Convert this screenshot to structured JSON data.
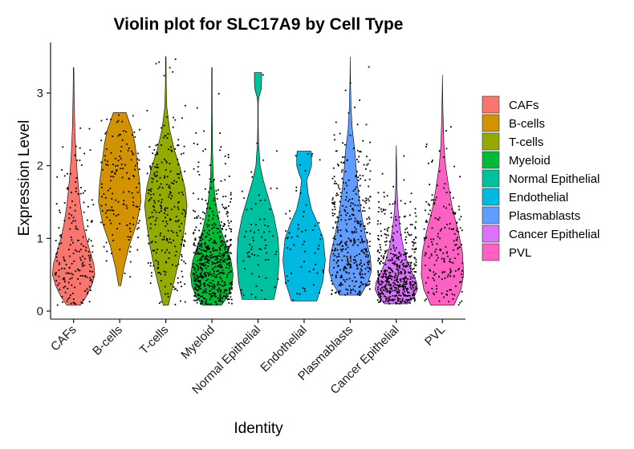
{
  "chart_data": {
    "type": "violin",
    "title": "Violin plot for SLC17A9 by Cell Type",
    "xlabel": "Identity",
    "ylabel": "Expression Level",
    "ylim": [
      -0.1,
      3.6
    ],
    "yticks": [
      0,
      1,
      2,
      3
    ],
    "grid": false,
    "legend_position": "right",
    "categories": [
      "CAFs",
      "B-cells",
      "T-cells",
      "Myeloid",
      "Normal Epithelial",
      "Endothelial",
      "Plasmablasts",
      "Cancer Epithelial",
      "PVL"
    ],
    "colors": [
      "#F8766D",
      "#D39200",
      "#93AA00",
      "#00BA38",
      "#00C19F",
      "#00B9E3",
      "#619CFF",
      "#DB72FB",
      "#FF61C3"
    ],
    "series": [
      {
        "name": "CAFs",
        "min": 0.08,
        "max": 3.35,
        "mode": 0.55,
        "n_points": 190,
        "density": [
          [
            0.08,
            0.32
          ],
          [
            0.2,
            0.6
          ],
          [
            0.35,
            0.85
          ],
          [
            0.5,
            1.0
          ],
          [
            0.65,
            0.95
          ],
          [
            0.8,
            0.8
          ],
          [
            1.0,
            0.6
          ],
          [
            1.2,
            0.45
          ],
          [
            1.5,
            0.3
          ],
          [
            1.8,
            0.2
          ],
          [
            2.1,
            0.12
          ],
          [
            2.5,
            0.06
          ],
          [
            2.9,
            0.03
          ],
          [
            3.35,
            0.01
          ]
        ]
      },
      {
        "name": "B-cells",
        "min": 0.35,
        "max": 2.73,
        "mode": 1.55,
        "n_points": 150,
        "density": [
          [
            0.35,
            0.05
          ],
          [
            0.6,
            0.2
          ],
          [
            0.9,
            0.45
          ],
          [
            1.2,
            0.8
          ],
          [
            1.5,
            1.0
          ],
          [
            1.75,
            0.95
          ],
          [
            2.0,
            0.85
          ],
          [
            2.3,
            0.72
          ],
          [
            2.5,
            0.58
          ],
          [
            2.6,
            0.45
          ],
          [
            2.73,
            0.3
          ]
        ]
      },
      {
        "name": "T-cells",
        "min": 0.08,
        "max": 3.5,
        "mode": 1.45,
        "n_points": 260,
        "density": [
          [
            0.08,
            0.12
          ],
          [
            0.3,
            0.3
          ],
          [
            0.6,
            0.55
          ],
          [
            0.9,
            0.75
          ],
          [
            1.2,
            0.9
          ],
          [
            1.45,
            1.0
          ],
          [
            1.7,
            0.9
          ],
          [
            2.0,
            0.65
          ],
          [
            2.2,
            0.42
          ],
          [
            2.5,
            0.18
          ],
          [
            2.8,
            0.05
          ],
          [
            3.1,
            0.02
          ],
          [
            3.5,
            0.01
          ]
        ]
      },
      {
        "name": "Myeloid",
        "min": 0.08,
        "max": 3.35,
        "mode": 0.45,
        "n_points": 560,
        "density": [
          [
            0.08,
            0.45
          ],
          [
            0.2,
            0.75
          ],
          [
            0.35,
            0.95
          ],
          [
            0.5,
            1.0
          ],
          [
            0.7,
            0.9
          ],
          [
            0.9,
            0.68
          ],
          [
            1.1,
            0.45
          ],
          [
            1.3,
            0.3
          ],
          [
            1.5,
            0.18
          ],
          [
            1.8,
            0.07
          ],
          [
            2.2,
            0.03
          ],
          [
            2.8,
            0.015
          ],
          [
            3.35,
            0.01
          ]
        ]
      },
      {
        "name": "Normal Epithelial",
        "min": 0.16,
        "max": 3.28,
        "mode": 0.75,
        "n_points": 70,
        "density": [
          [
            0.16,
            0.75
          ],
          [
            0.4,
            0.92
          ],
          [
            0.7,
            1.0
          ],
          [
            1.0,
            0.95
          ],
          [
            1.3,
            0.75
          ],
          [
            1.6,
            0.45
          ],
          [
            1.8,
            0.25
          ],
          [
            2.0,
            0.1
          ],
          [
            2.3,
            0.03
          ],
          [
            2.6,
            0.01
          ],
          [
            2.85,
            0.01
          ],
          [
            2.95,
            0.05
          ],
          [
            3.05,
            0.15
          ],
          [
            3.15,
            0.17
          ],
          [
            3.28,
            0.17
          ]
        ]
      },
      {
        "name": "Endothelial",
        "min": 0.14,
        "max": 2.2,
        "mode": 0.75,
        "n_points": 60,
        "density": [
          [
            0.14,
            0.6
          ],
          [
            0.4,
            0.88
          ],
          [
            0.7,
            1.0
          ],
          [
            1.0,
            0.9
          ],
          [
            1.2,
            0.65
          ],
          [
            1.4,
            0.35
          ],
          [
            1.6,
            0.2
          ],
          [
            1.8,
            0.12
          ],
          [
            1.9,
            0.25
          ],
          [
            2.0,
            0.35
          ],
          [
            2.1,
            0.35
          ],
          [
            2.2,
            0.33
          ]
        ]
      },
      {
        "name": "Plasmablasts",
        "min": 0.22,
        "max": 3.5,
        "mode": 0.55,
        "n_points": 400,
        "density": [
          [
            0.22,
            0.5
          ],
          [
            0.4,
            0.85
          ],
          [
            0.55,
            1.0
          ],
          [
            0.75,
            0.95
          ],
          [
            1.0,
            0.75
          ],
          [
            1.3,
            0.55
          ],
          [
            1.6,
            0.4
          ],
          [
            1.9,
            0.3
          ],
          [
            2.2,
            0.22
          ],
          [
            2.5,
            0.1
          ],
          [
            2.8,
            0.04
          ],
          [
            3.2,
            0.01
          ],
          [
            3.5,
            0.0
          ]
        ]
      },
      {
        "name": "Cancer Epithelial",
        "min": 0.1,
        "max": 2.28,
        "mode": 0.35,
        "n_points": 520,
        "density": [
          [
            0.1,
            0.55
          ],
          [
            0.2,
            0.85
          ],
          [
            0.3,
            1.0
          ],
          [
            0.4,
            0.95
          ],
          [
            0.55,
            0.7
          ],
          [
            0.7,
            0.5
          ],
          [
            0.85,
            0.35
          ],
          [
            1.0,
            0.25
          ],
          [
            1.2,
            0.15
          ],
          [
            1.4,
            0.08
          ],
          [
            1.7,
            0.03
          ],
          [
            2.0,
            0.015
          ],
          [
            2.28,
            0.0
          ]
        ]
      },
      {
        "name": "PVL",
        "min": 0.08,
        "max": 3.25,
        "mode": 0.7,
        "n_points": 190,
        "density": [
          [
            0.08,
            0.55
          ],
          [
            0.3,
            0.88
          ],
          [
            0.5,
            1.0
          ],
          [
            0.8,
            0.95
          ],
          [
            1.1,
            0.75
          ],
          [
            1.4,
            0.48
          ],
          [
            1.7,
            0.3
          ],
          [
            2.0,
            0.15
          ],
          [
            2.3,
            0.07
          ],
          [
            2.7,
            0.03
          ],
          [
            3.0,
            0.01
          ],
          [
            3.25,
            0.0
          ]
        ]
      }
    ]
  }
}
